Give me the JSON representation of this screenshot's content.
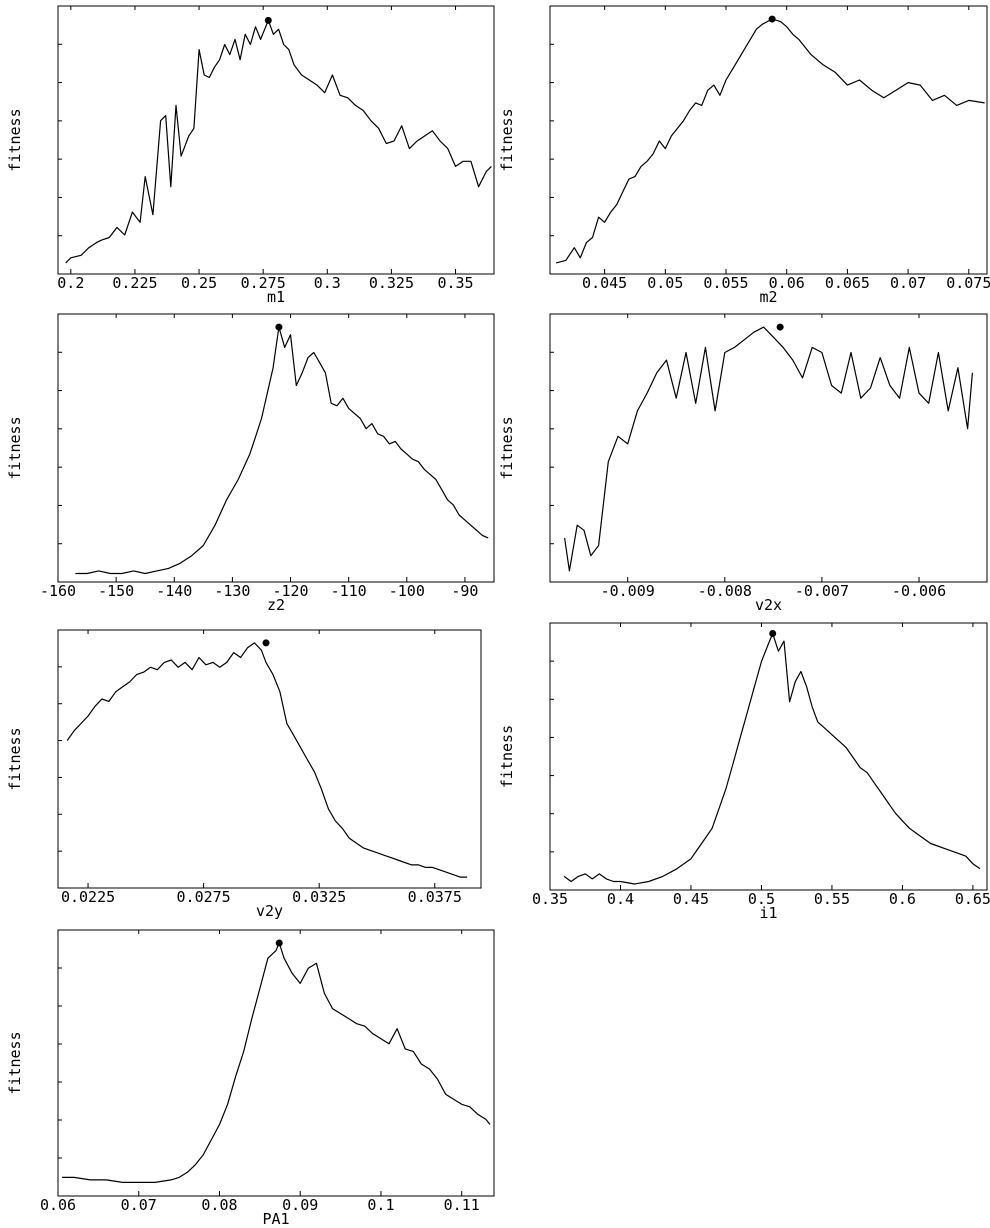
{
  "chart_data": [
    {
      "type": "line",
      "xlabel": "m1",
      "ylabel": "fitness",
      "xlim": [
        0.195,
        0.365
      ],
      "ylim": [
        0,
        1.0
      ],
      "xticks": [
        0.2,
        0.225,
        0.25,
        0.275,
        0.3,
        0.325,
        0.35
      ],
      "xtick_labels": [
        "0.2",
        "0.225",
        "0.25",
        "0.275",
        "0.3",
        "0.325",
        "0.35"
      ],
      "best": [
        0.277,
        0.975
      ],
      "x": [
        0.198,
        0.2,
        0.204,
        0.207,
        0.21,
        0.212,
        0.215,
        0.218,
        0.221,
        0.224,
        0.227,
        0.229,
        0.232,
        0.235,
        0.237,
        0.239,
        0.241,
        0.243,
        0.246,
        0.248,
        0.25,
        0.252,
        0.254,
        0.256,
        0.258,
        0.26,
        0.262,
        0.264,
        0.266,
        0.268,
        0.27,
        0.272,
        0.274,
        0.277,
        0.279,
        0.281,
        0.283,
        0.285,
        0.287,
        0.29,
        0.293,
        0.296,
        0.299,
        0.302,
        0.305,
        0.308,
        0.311,
        0.314,
        0.317,
        0.32,
        0.323,
        0.326,
        0.329,
        0.332,
        0.335,
        0.338,
        0.341,
        0.344,
        0.347,
        0.35,
        0.353,
        0.356,
        0.359,
        0.362,
        0.364
      ],
      "y": [
        0.02,
        0.04,
        0.05,
        0.08,
        0.1,
        0.11,
        0.12,
        0.16,
        0.13,
        0.22,
        0.18,
        0.36,
        0.21,
        0.58,
        0.6,
        0.32,
        0.64,
        0.44,
        0.52,
        0.55,
        0.86,
        0.76,
        0.75,
        0.79,
        0.82,
        0.88,
        0.84,
        0.9,
        0.82,
        0.92,
        0.88,
        0.95,
        0.9,
        0.975,
        0.92,
        0.94,
        0.88,
        0.86,
        0.8,
        0.76,
        0.74,
        0.72,
        0.69,
        0.76,
        0.68,
        0.67,
        0.64,
        0.62,
        0.58,
        0.55,
        0.49,
        0.5,
        0.56,
        0.47,
        0.5,
        0.52,
        0.54,
        0.5,
        0.47,
        0.4,
        0.42,
        0.42,
        0.32,
        0.38,
        0.4
      ]
    },
    {
      "type": "line",
      "xlabel": "m2",
      "ylabel": "fitness",
      "xlim": [
        0.0405,
        0.0765
      ],
      "ylim": [
        0,
        1.0
      ],
      "xticks": [
        0.045,
        0.05,
        0.055,
        0.06,
        0.065,
        0.07,
        0.075
      ],
      "xtick_labels": [
        "0.045",
        "0.05",
        "0.055",
        "0.06",
        "0.065",
        "0.07",
        "0.075"
      ],
      "best": [
        0.0588,
        0.98
      ],
      "x": [
        0.041,
        0.0418,
        0.0425,
        0.043,
        0.0435,
        0.044,
        0.0445,
        0.045,
        0.0455,
        0.046,
        0.0465,
        0.047,
        0.0475,
        0.048,
        0.0485,
        0.049,
        0.0495,
        0.05,
        0.0505,
        0.051,
        0.0515,
        0.052,
        0.0525,
        0.053,
        0.0535,
        0.054,
        0.0545,
        0.055,
        0.0555,
        0.056,
        0.0565,
        0.057,
        0.0575,
        0.058,
        0.0588,
        0.0595,
        0.06,
        0.0605,
        0.061,
        0.0615,
        0.062,
        0.063,
        0.064,
        0.065,
        0.066,
        0.067,
        0.068,
        0.069,
        0.07,
        0.071,
        0.072,
        0.073,
        0.074,
        0.075,
        0.0763
      ],
      "y": [
        0.02,
        0.03,
        0.08,
        0.04,
        0.1,
        0.12,
        0.2,
        0.18,
        0.22,
        0.25,
        0.3,
        0.35,
        0.36,
        0.4,
        0.42,
        0.45,
        0.5,
        0.47,
        0.52,
        0.55,
        0.58,
        0.62,
        0.65,
        0.64,
        0.7,
        0.72,
        0.68,
        0.74,
        0.78,
        0.82,
        0.86,
        0.9,
        0.94,
        0.96,
        0.98,
        0.97,
        0.95,
        0.92,
        0.9,
        0.87,
        0.84,
        0.8,
        0.77,
        0.72,
        0.74,
        0.7,
        0.67,
        0.7,
        0.73,
        0.72,
        0.66,
        0.68,
        0.64,
        0.66,
        0.65
      ]
    },
    {
      "type": "line",
      "xlabel": "z2",
      "ylabel": "fitness",
      "xlim": [
        -160,
        -85
      ],
      "ylim": [
        0,
        1.0
      ],
      "xticks": [
        -160,
        -150,
        -140,
        -130,
        -120,
        -110,
        -100,
        -90
      ],
      "xtick_labels": [
        "-160",
        "-150",
        "-140",
        "-130",
        "-120",
        "-110",
        "-100",
        "-90"
      ],
      "best": [
        -122,
        0.98
      ],
      "x": [
        -157,
        -155,
        -153,
        -151,
        -149,
        -147,
        -145,
        -143,
        -141,
        -139,
        -137,
        -135,
        -133,
        -131,
        -129,
        -127,
        -126,
        -125,
        -124,
        -123,
        -122,
        -121,
        -120,
        -119,
        -118,
        -117,
        -116,
        -115,
        -114,
        -113,
        -112,
        -111,
        -110,
        -109,
        -108,
        -107,
        -106,
        -105,
        -104,
        -103,
        -102,
        -101,
        -100,
        -99,
        -98,
        -97,
        -96,
        -95,
        -94,
        -93,
        -92,
        -91,
        -90,
        -89,
        -88,
        -87,
        -86
      ],
      "y": [
        0.01,
        0.01,
        0.02,
        0.01,
        0.01,
        0.02,
        0.01,
        0.02,
        0.03,
        0.05,
        0.08,
        0.12,
        0.2,
        0.3,
        0.38,
        0.48,
        0.55,
        0.62,
        0.72,
        0.82,
        0.98,
        0.9,
        0.95,
        0.75,
        0.8,
        0.86,
        0.88,
        0.84,
        0.8,
        0.68,
        0.67,
        0.7,
        0.66,
        0.64,
        0.62,
        0.58,
        0.6,
        0.56,
        0.55,
        0.52,
        0.53,
        0.5,
        0.48,
        0.46,
        0.45,
        0.42,
        0.4,
        0.38,
        0.34,
        0.3,
        0.28,
        0.24,
        0.22,
        0.2,
        0.18,
        0.16,
        0.15
      ]
    },
    {
      "type": "line",
      "xlabel": "v2x",
      "ylabel": "fitness",
      "xlim": [
        -0.0098,
        -0.0053
      ],
      "ylim": [
        0,
        1.0
      ],
      "xticks": [
        -0.009,
        -0.008,
        -0.007,
        -0.006
      ],
      "xtick_labels": [
        "-0.009",
        "-0.008",
        "-0.007",
        "-0.006"
      ],
      "best": [
        -0.00743,
        0.98
      ],
      "x": [
        -0.00965,
        -0.0096,
        -0.00952,
        -0.00945,
        -0.00938,
        -0.0093,
        -0.0092,
        -0.0091,
        -0.009,
        -0.0089,
        -0.0088,
        -0.0087,
        -0.0086,
        -0.0085,
        -0.0084,
        -0.0083,
        -0.0082,
        -0.0081,
        -0.008,
        -0.0079,
        -0.0078,
        -0.0077,
        -0.0076,
        -0.0075,
        -0.0074,
        -0.0073,
        -0.0072,
        -0.0071,
        -0.007,
        -0.0069,
        -0.0068,
        -0.0067,
        -0.0066,
        -0.0065,
        -0.0064,
        -0.0063,
        -0.0062,
        -0.0061,
        -0.006,
        -0.0059,
        -0.0058,
        -0.0057,
        -0.0056,
        -0.0055,
        -0.00545
      ],
      "y": [
        0.15,
        0.02,
        0.2,
        0.18,
        0.08,
        0.12,
        0.45,
        0.55,
        0.52,
        0.65,
        0.72,
        0.8,
        0.85,
        0.7,
        0.88,
        0.68,
        0.9,
        0.65,
        0.88,
        0.9,
        0.93,
        0.96,
        0.98,
        0.94,
        0.9,
        0.85,
        0.78,
        0.9,
        0.88,
        0.75,
        0.72,
        0.88,
        0.7,
        0.74,
        0.86,
        0.75,
        0.7,
        0.9,
        0.72,
        0.68,
        0.88,
        0.65,
        0.82,
        0.58,
        0.8
      ]
    },
    {
      "type": "line",
      "xlabel": "v2y",
      "ylabel": "fitness",
      "xlim": [
        0.0212,
        0.0395
      ],
      "ylim": [
        0,
        1.0
      ],
      "xticks": [
        0.0225,
        0.0275,
        0.0325,
        0.0375
      ],
      "xtick_labels": [
        "0.0225",
        "0.0275",
        "0.0325",
        "0.0375"
      ],
      "best": [
        0.0302,
        0.98
      ],
      "x": [
        0.0216,
        0.0219,
        0.0222,
        0.0225,
        0.0228,
        0.0231,
        0.0234,
        0.0237,
        0.024,
        0.0243,
        0.0246,
        0.0249,
        0.0252,
        0.0255,
        0.0258,
        0.0261,
        0.0264,
        0.0267,
        0.027,
        0.0273,
        0.0276,
        0.0279,
        0.0282,
        0.0285,
        0.0288,
        0.0291,
        0.0294,
        0.0297,
        0.03,
        0.0302,
        0.0305,
        0.0308,
        0.0311,
        0.0314,
        0.0317,
        0.032,
        0.0323,
        0.0326,
        0.0329,
        0.0332,
        0.0335,
        0.0338,
        0.0341,
        0.0344,
        0.0347,
        0.035,
        0.0353,
        0.0356,
        0.0359,
        0.0362,
        0.0365,
        0.0368,
        0.0371,
        0.0374,
        0.0377,
        0.038,
        0.0383,
        0.0386,
        0.0389
      ],
      "y": [
        0.58,
        0.62,
        0.65,
        0.68,
        0.72,
        0.75,
        0.74,
        0.78,
        0.8,
        0.82,
        0.85,
        0.86,
        0.88,
        0.87,
        0.9,
        0.91,
        0.88,
        0.9,
        0.87,
        0.92,
        0.89,
        0.9,
        0.88,
        0.9,
        0.94,
        0.92,
        0.96,
        0.98,
        0.95,
        0.9,
        0.85,
        0.78,
        0.65,
        0.6,
        0.55,
        0.5,
        0.45,
        0.38,
        0.3,
        0.25,
        0.22,
        0.18,
        0.16,
        0.14,
        0.13,
        0.12,
        0.11,
        0.1,
        0.09,
        0.08,
        0.07,
        0.07,
        0.06,
        0.06,
        0.05,
        0.04,
        0.03,
        0.02,
        0.02
      ]
    },
    {
      "type": "line",
      "xlabel": "i1",
      "ylabel": "fitness",
      "xlim": [
        0.35,
        0.66
      ],
      "ylim": [
        0,
        1.0
      ],
      "xticks": [
        0.35,
        0.4,
        0.45,
        0.5,
        0.55,
        0.6,
        0.65
      ],
      "xtick_labels": [
        "0.35",
        "0.4",
        "0.45",
        "0.5",
        "0.55",
        "0.6",
        "0.65"
      ],
      "best": [
        0.508,
        0.99
      ],
      "x": [
        0.36,
        0.365,
        0.37,
        0.375,
        0.38,
        0.385,
        0.39,
        0.395,
        0.4,
        0.41,
        0.42,
        0.43,
        0.44,
        0.45,
        0.455,
        0.46,
        0.465,
        0.47,
        0.475,
        0.48,
        0.485,
        0.49,
        0.495,
        0.5,
        0.505,
        0.508,
        0.512,
        0.516,
        0.52,
        0.524,
        0.528,
        0.532,
        0.536,
        0.54,
        0.544,
        0.548,
        0.552,
        0.556,
        0.56,
        0.565,
        0.57,
        0.575,
        0.58,
        0.585,
        0.59,
        0.595,
        0.6,
        0.605,
        0.61,
        0.615,
        0.62,
        0.625,
        0.63,
        0.635,
        0.64,
        0.645,
        0.65,
        0.655
      ],
      "y": [
        0.03,
        0.01,
        0.03,
        0.04,
        0.02,
        0.04,
        0.02,
        0.01,
        0.01,
        0.0,
        0.01,
        0.03,
        0.06,
        0.1,
        0.14,
        0.18,
        0.22,
        0.3,
        0.38,
        0.48,
        0.58,
        0.68,
        0.78,
        0.88,
        0.95,
        0.99,
        0.92,
        0.96,
        0.72,
        0.8,
        0.84,
        0.78,
        0.7,
        0.64,
        0.62,
        0.6,
        0.58,
        0.56,
        0.54,
        0.5,
        0.46,
        0.44,
        0.4,
        0.36,
        0.32,
        0.28,
        0.25,
        0.22,
        0.2,
        0.18,
        0.16,
        0.15,
        0.14,
        0.13,
        0.12,
        0.11,
        0.08,
        0.06
      ]
    },
    {
      "type": "line",
      "xlabel": "PA1",
      "ylabel": "fitness",
      "xlim": [
        0.06,
        0.114
      ],
      "ylim": [
        0,
        1.0
      ],
      "xticks": [
        0.06,
        0.07,
        0.08,
        0.09,
        0.1,
        0.11
      ],
      "xtick_labels": [
        "0.06",
        "0.07",
        "0.08",
        "0.09",
        "0.1",
        "0.11"
      ],
      "best": [
        0.0874,
        0.98
      ],
      "x": [
        0.0605,
        0.062,
        0.064,
        0.066,
        0.068,
        0.07,
        0.072,
        0.074,
        0.075,
        0.076,
        0.077,
        0.078,
        0.079,
        0.08,
        0.081,
        0.082,
        0.083,
        0.084,
        0.085,
        0.086,
        0.087,
        0.0874,
        0.088,
        0.089,
        0.09,
        0.091,
        0.092,
        0.093,
        0.094,
        0.095,
        0.096,
        0.097,
        0.098,
        0.099,
        0.1,
        0.101,
        0.102,
        0.103,
        0.104,
        0.105,
        0.106,
        0.107,
        0.108,
        0.109,
        0.11,
        0.111,
        0.112,
        0.113,
        0.1135
      ],
      "y": [
        0.05,
        0.05,
        0.04,
        0.04,
        0.03,
        0.03,
        0.03,
        0.04,
        0.05,
        0.07,
        0.1,
        0.14,
        0.2,
        0.26,
        0.34,
        0.45,
        0.55,
        0.68,
        0.8,
        0.92,
        0.95,
        0.98,
        0.92,
        0.86,
        0.82,
        0.88,
        0.9,
        0.78,
        0.72,
        0.7,
        0.68,
        0.66,
        0.65,
        0.62,
        0.6,
        0.58,
        0.64,
        0.56,
        0.55,
        0.5,
        0.48,
        0.44,
        0.38,
        0.36,
        0.34,
        0.33,
        0.3,
        0.28,
        0.26
      ]
    }
  ]
}
